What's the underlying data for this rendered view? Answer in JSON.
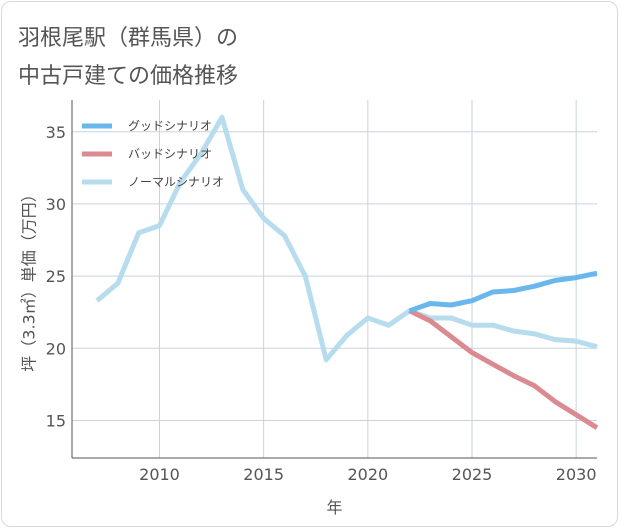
{
  "title": {
    "line1": "羽根尾駅（群馬県）の",
    "line2": "中古戸建ての価格推移"
  },
  "colors": {
    "good": "#6ab7ee",
    "bad": "#dc8a92",
    "normal": "#b7dcee",
    "grid": "#c8d3df",
    "axis": "#555555"
  },
  "chart_data": {
    "type": "line",
    "title": "羽根尾駅（群馬県）の中古戸建ての価格推移",
    "xlabel": "年",
    "ylabel": "坪（3.3㎡）単価（万円）",
    "xlim": [
      2005.8,
      2031
    ],
    "ylim": [
      12.4,
      37.2
    ],
    "xticks": [
      2010,
      2015,
      2020,
      2025,
      2030
    ],
    "yticks": [
      15,
      20,
      25,
      30,
      35
    ],
    "legend_position": "top-left",
    "series": [
      {
        "name": "グッドシナリオ",
        "color_key": "good",
        "x": [
          2022,
          2023,
          2024,
          2025,
          2026,
          2027,
          2028,
          2029,
          2030,
          2031
        ],
        "y": [
          22.6,
          23.1,
          23.0,
          23.3,
          23.9,
          24.0,
          24.3,
          24.7,
          24.9,
          25.2
        ]
      },
      {
        "name": "バッドシナリオ",
        "color_key": "bad",
        "x": [
          2022,
          2023,
          2024,
          2025,
          2026,
          2027,
          2028,
          2029,
          2030,
          2031
        ],
        "y": [
          22.6,
          21.9,
          20.8,
          19.7,
          18.9,
          18.1,
          17.4,
          16.3,
          15.4,
          14.5
        ]
      },
      {
        "name": "ノーマルシナリオ",
        "color_key": "normal",
        "x": [
          2007,
          2008,
          2009,
          2010,
          2011,
          2012,
          2013,
          2014,
          2015,
          2016,
          2017,
          2018,
          2019,
          2020,
          2021,
          2022,
          2023,
          2024,
          2025,
          2026,
          2027,
          2028,
          2029,
          2030,
          2031
        ],
        "y": [
          23.3,
          24.5,
          28.0,
          28.5,
          31.5,
          33.5,
          36.0,
          31.0,
          29.0,
          27.8,
          25.0,
          19.2,
          20.9,
          22.1,
          21.6,
          22.6,
          22.1,
          22.1,
          21.6,
          21.6,
          21.2,
          21.0,
          20.6,
          20.5,
          20.1
        ]
      }
    ]
  }
}
